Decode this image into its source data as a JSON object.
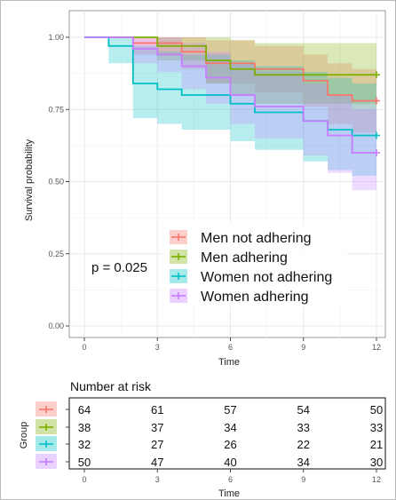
{
  "chart_data": {
    "type": "line",
    "subtype": "kaplan-meier",
    "xlabel": "Time",
    "ylabel": "Survival probability",
    "xlim": [
      0,
      12
    ],
    "ylim": [
      0,
      1
    ],
    "x_ticks": [
      "0",
      "3",
      "6",
      "9",
      "12"
    ],
    "y_ticks": [
      "0.00",
      "0.25",
      "0.50",
      "0.75",
      "1.00"
    ],
    "grid": true,
    "pvalue_text": "p = 0.025",
    "legend": {
      "placement": "center-right"
    },
    "series": [
      {
        "name": "Men not adhering",
        "color": "#f8766d",
        "steps": [
          [
            0,
            1.0
          ],
          [
            2,
            0.98
          ],
          [
            4,
            0.95
          ],
          [
            5,
            0.91
          ],
          [
            7,
            0.89
          ],
          [
            9,
            0.85
          ],
          [
            10,
            0.8
          ],
          [
            11,
            0.78
          ],
          [
            12,
            0.78
          ]
        ],
        "ci_lower": [
          [
            0,
            1.0
          ],
          [
            2,
            0.94
          ],
          [
            4,
            0.89
          ],
          [
            5,
            0.84
          ],
          [
            7,
            0.81
          ],
          [
            9,
            0.76
          ],
          [
            10,
            0.7
          ],
          [
            11,
            0.67
          ],
          [
            12,
            0.67
          ]
        ],
        "ci_upper": [
          [
            0,
            1.0
          ],
          [
            2,
            1.0
          ],
          [
            4,
            1.0
          ],
          [
            5,
            0.99
          ],
          [
            7,
            0.97
          ],
          [
            9,
            0.94
          ],
          [
            10,
            0.91
          ],
          [
            11,
            0.89
          ],
          [
            12,
            0.89
          ]
        ]
      },
      {
        "name": "Men adhering",
        "color": "#7cae00",
        "steps": [
          [
            0,
            1.0
          ],
          [
            3,
            0.97
          ],
          [
            5,
            0.92
          ],
          [
            6,
            0.89
          ],
          [
            7,
            0.87
          ],
          [
            9,
            0.87
          ],
          [
            11,
            0.87
          ],
          [
            12,
            0.87
          ]
        ],
        "ci_lower": [
          [
            0,
            1.0
          ],
          [
            3,
            0.92
          ],
          [
            5,
            0.84
          ],
          [
            6,
            0.8
          ],
          [
            7,
            0.77
          ],
          [
            9,
            0.77
          ],
          [
            11,
            0.77
          ],
          [
            12,
            0.77
          ]
        ],
        "ci_upper": [
          [
            0,
            1.0
          ],
          [
            3,
            1.0
          ],
          [
            5,
            1.0
          ],
          [
            6,
            0.99
          ],
          [
            7,
            0.98
          ],
          [
            9,
            0.98
          ],
          [
            11,
            0.98
          ],
          [
            12,
            0.98
          ]
        ]
      },
      {
        "name": "Women not adhering",
        "color": "#00bfc4",
        "steps": [
          [
            0,
            1.0
          ],
          [
            1,
            0.97
          ],
          [
            2,
            0.84
          ],
          [
            3,
            0.82
          ],
          [
            4,
            0.8
          ],
          [
            6,
            0.77
          ],
          [
            7,
            0.74
          ],
          [
            9,
            0.71
          ],
          [
            10,
            0.68
          ],
          [
            11,
            0.66
          ],
          [
            12,
            0.66
          ]
        ],
        "ci_lower": [
          [
            0,
            1.0
          ],
          [
            1,
            0.91
          ],
          [
            2,
            0.72
          ],
          [
            3,
            0.7
          ],
          [
            4,
            0.68
          ],
          [
            6,
            0.64
          ],
          [
            7,
            0.61
          ],
          [
            9,
            0.57
          ],
          [
            10,
            0.54
          ],
          [
            11,
            0.52
          ],
          [
            12,
            0.52
          ]
        ],
        "ci_upper": [
          [
            0,
            1.0
          ],
          [
            1,
            1.0
          ],
          [
            2,
            0.97
          ],
          [
            3,
            0.95
          ],
          [
            4,
            0.94
          ],
          [
            6,
            0.92
          ],
          [
            7,
            0.9
          ],
          [
            9,
            0.88
          ],
          [
            10,
            0.86
          ],
          [
            11,
            0.84
          ],
          [
            12,
            0.84
          ]
        ]
      },
      {
        "name": "Women adhering",
        "color": "#c77cff",
        "steps": [
          [
            0,
            1.0
          ],
          [
            2,
            0.96
          ],
          [
            3,
            0.94
          ],
          [
            4,
            0.9
          ],
          [
            5,
            0.86
          ],
          [
            6,
            0.8
          ],
          [
            7,
            0.76
          ],
          [
            9,
            0.71
          ],
          [
            10,
            0.66
          ],
          [
            11,
            0.6
          ],
          [
            12,
            0.6
          ]
        ],
        "ci_lower": [
          [
            0,
            1.0
          ],
          [
            2,
            0.91
          ],
          [
            3,
            0.88
          ],
          [
            4,
            0.82
          ],
          [
            5,
            0.77
          ],
          [
            6,
            0.7
          ],
          [
            7,
            0.65
          ],
          [
            9,
            0.59
          ],
          [
            10,
            0.53
          ],
          [
            11,
            0.47
          ],
          [
            12,
            0.47
          ]
        ],
        "ci_upper": [
          [
            0,
            1.0
          ],
          [
            2,
            1.0
          ],
          [
            3,
            1.0
          ],
          [
            4,
            0.98
          ],
          [
            5,
            0.95
          ],
          [
            6,
            0.91
          ],
          [
            7,
            0.88
          ],
          [
            9,
            0.84
          ],
          [
            10,
            0.8
          ],
          [
            11,
            0.75
          ],
          [
            12,
            0.75
          ]
        ]
      }
    ],
    "risk_table": {
      "title": "Number at risk",
      "ylabel": "Group",
      "xlabel": "Time",
      "times": [
        "0",
        "3",
        "6",
        "9",
        "12"
      ],
      "rows": [
        [
          "64",
          "61",
          "57",
          "54",
          "50"
        ],
        [
          "38",
          "37",
          "34",
          "33",
          "33"
        ],
        [
          "32",
          "27",
          "26",
          "22",
          "21"
        ],
        [
          "50",
          "47",
          "40",
          "34",
          "30"
        ]
      ]
    }
  }
}
